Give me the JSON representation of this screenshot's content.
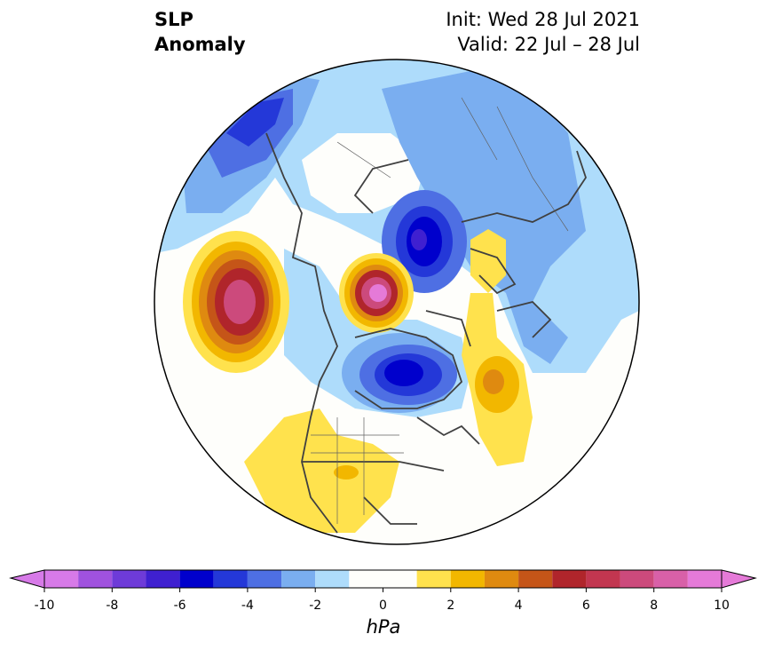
{
  "title": {
    "left_line1": "SLP",
    "left_line2": "Anomaly",
    "right_line1": "Init: Wed 28 Jul 2021",
    "right_line2": "Valid: 22 Jul – 28 Jul"
  },
  "colorbar": {
    "unit": "hPa",
    "tick_labels": [
      "-10",
      "-8",
      "-6",
      "-4",
      "-2",
      "0",
      "2",
      "4",
      "6",
      "8",
      "10"
    ],
    "levels": [
      -10,
      -9,
      -8,
      -7,
      -6,
      -5,
      -4,
      -3,
      -2,
      -1,
      1,
      2,
      3,
      4,
      5,
      6,
      7,
      8,
      9,
      10
    ],
    "colors": [
      "#d77ae8",
      "#a052de",
      "#6e3bd8",
      "#3f20d0",
      "#0000cc",
      "#2438d8",
      "#4e6fe3",
      "#7aaef0",
      "#aedcfb",
      "#fefefb",
      "#ffe24d",
      "#f2b700",
      "#df8a10",
      "#c55518",
      "#b0252b",
      "#c23650",
      "#cc4a7c",
      "#d860a8",
      "#e57ad8"
    ],
    "extend": "both"
  },
  "map": {
    "projection": "north-polar-stereographic",
    "anomaly_centers": [
      {
        "region": "North Pacific",
        "sign": "positive",
        "peak": 8
      },
      {
        "region": "Alaska / Beaufort",
        "sign": "positive",
        "peak": 9
      },
      {
        "region": "Eastern Siberia",
        "sign": "negative",
        "peak": -6
      },
      {
        "region": "Hudson Bay / Baffin",
        "sign": "negative",
        "peak": -6
      },
      {
        "region": "Northeast Pacific (Aleutians)",
        "sign": "negative",
        "peak": -6
      },
      {
        "region": "North Atlantic",
        "sign": "positive",
        "peak": 4
      },
      {
        "region": "Scandinavia",
        "sign": "positive",
        "peak": 2
      },
      {
        "region": "Central US",
        "sign": "positive",
        "peak": 2
      }
    ]
  }
}
